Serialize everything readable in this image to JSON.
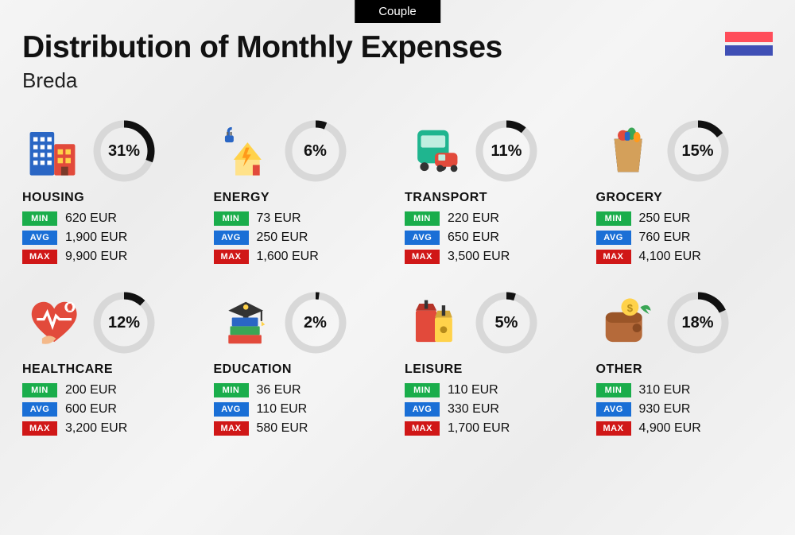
{
  "tab_label": "Couple",
  "title": "Distribution of Monthly Expenses",
  "subtitle": "Breda",
  "flag_colors": [
    "#ff4d5a",
    "#3f4fb5"
  ],
  "badge_colors": {
    "min": "#1aad4b",
    "avg": "#1a6fd6",
    "max": "#d01717"
  },
  "badge_labels": {
    "min": "MIN",
    "avg": "AVG",
    "max": "MAX"
  },
  "ring": {
    "track_color": "#d8d8d8",
    "progress_color": "#111111",
    "stroke_width": 9
  },
  "typography": {
    "title_size": 39,
    "title_weight": 800,
    "subtitle_size": 26,
    "category_size": 16,
    "percent_size": 20,
    "value_size": 16
  },
  "categories": [
    {
      "name": "HOUSING",
      "percent": 31,
      "min": "620 EUR",
      "avg": "1,900 EUR",
      "max": "9,900 EUR",
      "icon": "housing"
    },
    {
      "name": "ENERGY",
      "percent": 6,
      "min": "73 EUR",
      "avg": "250 EUR",
      "max": "1,600 EUR",
      "icon": "energy"
    },
    {
      "name": "TRANSPORT",
      "percent": 11,
      "min": "220 EUR",
      "avg": "650 EUR",
      "max": "3,500 EUR",
      "icon": "transport"
    },
    {
      "name": "GROCERY",
      "percent": 15,
      "min": "250 EUR",
      "avg": "760 EUR",
      "max": "4,100 EUR",
      "icon": "grocery"
    },
    {
      "name": "HEALTHCARE",
      "percent": 12,
      "min": "200 EUR",
      "avg": "600 EUR",
      "max": "3,200 EUR",
      "icon": "healthcare"
    },
    {
      "name": "EDUCATION",
      "percent": 2,
      "min": "36 EUR",
      "avg": "110 EUR",
      "max": "580 EUR",
      "icon": "education"
    },
    {
      "name": "LEISURE",
      "percent": 5,
      "min": "110 EUR",
      "avg": "330 EUR",
      "max": "1,700 EUR",
      "icon": "leisure"
    },
    {
      "name": "OTHER",
      "percent": 18,
      "min": "310 EUR",
      "avg": "930 EUR",
      "max": "4,900 EUR",
      "icon": "other"
    }
  ]
}
